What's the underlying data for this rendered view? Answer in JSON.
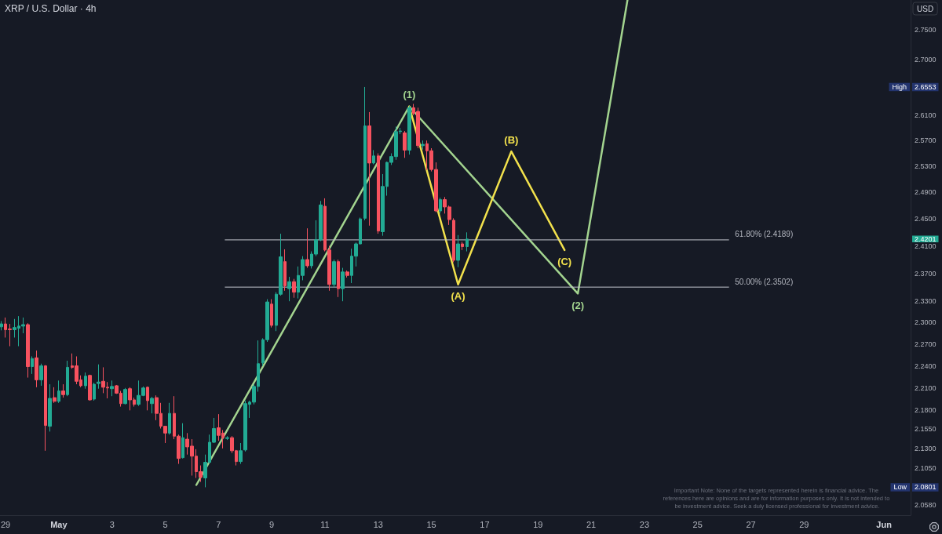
{
  "chart_data": {
    "type": "candlestick",
    "title": "XRP / U.S. Dollar · 4h",
    "ylabel": "USD",
    "log": true,
    "xlim": [
      "--04-28T19:00",
      "--06-02T00:00"
    ],
    "ylim": [
      2.045,
      2.8
    ],
    "xticks": [
      {
        "value": "--04-29",
        "label": "29"
      },
      {
        "value": "--05-01",
        "label": "May"
      },
      {
        "value": "--05-03",
        "label": "3"
      },
      {
        "value": "--05-05",
        "label": "5"
      },
      {
        "value": "--05-07",
        "label": "7"
      },
      {
        "value": "--05-09",
        "label": "9"
      },
      {
        "value": "--05-11",
        "label": "11"
      },
      {
        "value": "--05-13",
        "label": "13"
      },
      {
        "value": "--05-15",
        "label": "15"
      },
      {
        "value": "--05-17",
        "label": "17"
      },
      {
        "value": "--05-19",
        "label": "19"
      },
      {
        "value": "--05-21",
        "label": "21"
      },
      {
        "value": "--05-23",
        "label": "23"
      },
      {
        "value": "--05-25",
        "label": "25"
      },
      {
        "value": "--05-27",
        "label": "27"
      },
      {
        "value": "--05-29",
        "label": "29"
      },
      {
        "value": "--06-01",
        "label": "Jun"
      }
    ],
    "yticks": [
      {
        "value": 2.058,
        "label": "2.0580"
      },
      {
        "value": 2.0801,
        "label": "2.0801"
      },
      {
        "value": 2.105,
        "label": "2.1050"
      },
      {
        "value": 2.13,
        "label": "2.1300"
      },
      {
        "value": 2.155,
        "label": "2.1550"
      },
      {
        "value": 2.18,
        "label": "2.1800"
      },
      {
        "value": 2.21,
        "label": "2.2100"
      },
      {
        "value": 2.24,
        "label": "2.2400"
      },
      {
        "value": 2.27,
        "label": "2.2700"
      },
      {
        "value": 2.3,
        "label": "2.3000"
      },
      {
        "value": 2.33,
        "label": "2.3300"
      },
      {
        "value": 2.37,
        "label": "2.3700"
      },
      {
        "value": 2.41,
        "label": "2.4100"
      },
      {
        "value": 2.4201,
        "label": "2.4201"
      },
      {
        "value": 2.45,
        "label": "2.4500"
      },
      {
        "value": 2.49,
        "label": "2.4900"
      },
      {
        "value": 2.53,
        "label": "2.5300"
      },
      {
        "value": 2.57,
        "label": "2.5700"
      },
      {
        "value": 2.61,
        "label": "2.6100"
      },
      {
        "value": 2.6553,
        "label": "2.6553"
      },
      {
        "value": 2.7,
        "label": "2.7000"
      },
      {
        "value": 2.75,
        "label": "2.7500"
      }
    ],
    "x": [
      "--04-28T20:00",
      "--04-29T00:00",
      "--04-29T04:00",
      "--04-29T08:00",
      "--04-29T12:00",
      "--04-29T16:00",
      "--04-29T20:00",
      "--04-30T00:00",
      "--04-30T04:00",
      "--04-30T08:00",
      "--04-30T12:00",
      "--04-30T16:00",
      "--04-30T20:00",
      "--05-01T00:00",
      "--05-01T04:00",
      "--05-01T08:00",
      "--05-01T12:00",
      "--05-01T16:00",
      "--05-01T20:00",
      "--05-02T00:00",
      "--05-02T04:00",
      "--05-02T08:00",
      "--05-02T12:00",
      "--05-02T16:00",
      "--05-02T20:00",
      "--05-03T00:00",
      "--05-03T04:00",
      "--05-03T08:00",
      "--05-03T12:00",
      "--05-03T16:00",
      "--05-03T20:00",
      "--05-04T00:00",
      "--05-04T04:00",
      "--05-04T08:00",
      "--05-04T12:00",
      "--05-04T16:00",
      "--05-04T20:00",
      "--05-05T00:00",
      "--05-05T04:00",
      "--05-05T08:00",
      "--05-05T12:00",
      "--05-05T16:00",
      "--05-05T20:00",
      "--05-06T00:00",
      "--05-06T04:00",
      "--05-06T08:00",
      "--05-06T12:00",
      "--05-06T16:00",
      "--05-06T20:00",
      "--05-07T00:00",
      "--05-07T04:00",
      "--05-07T08:00",
      "--05-07T12:00",
      "--05-07T16:00",
      "--05-07T20:00",
      "--05-08T00:00",
      "--05-08T04:00",
      "--05-08T08:00",
      "--05-08T12:00",
      "--05-08T16:00",
      "--05-08T20:00",
      "--05-09T00:00",
      "--05-09T04:00",
      "--05-09T08:00",
      "--05-09T12:00",
      "--05-09T16:00",
      "--05-09T20:00",
      "--05-10T00:00",
      "--05-10T04:00",
      "--05-10T08:00",
      "--05-10T12:00",
      "--05-10T16:00",
      "--05-10T20:00",
      "--05-11T00:00",
      "--05-11T04:00",
      "--05-11T08:00",
      "--05-11T12:00",
      "--05-11T16:00",
      "--05-11T20:00",
      "--05-12T00:00",
      "--05-12T04:00",
      "--05-12T08:00",
      "--05-12T12:00",
      "--05-12T16:00",
      "--05-12T20:00",
      "--05-13T00:00",
      "--05-13T04:00",
      "--05-13T08:00",
      "--05-13T12:00",
      "--05-13T16:00",
      "--05-13T20:00",
      "--05-14T00:00",
      "--05-14T04:00",
      "--05-14T08:00",
      "--05-14T12:00",
      "--05-14T16:00",
      "--05-14T20:00",
      "--05-15T00:00",
      "--05-15T04:00",
      "--05-15T08:00",
      "--05-15T12:00",
      "--05-15T16:00",
      "--05-15T20:00",
      "--05-16T00:00",
      "--05-16T04:00",
      "--05-16T08:00"
    ],
    "ohlc": [
      [
        2.294,
        2.302,
        2.289,
        2.298
      ],
      [
        2.298,
        2.307,
        2.279,
        2.29
      ],
      [
        2.291,
        2.298,
        2.267,
        2.29
      ],
      [
        2.29,
        2.305,
        2.279,
        2.293
      ],
      [
        2.292,
        2.309,
        2.267,
        2.295
      ],
      [
        2.295,
        2.307,
        2.285,
        2.297
      ],
      [
        2.297,
        2.299,
        2.224,
        2.239
      ],
      [
        2.239,
        2.253,
        2.229,
        2.25
      ],
      [
        2.251,
        2.261,
        2.211,
        2.221
      ],
      [
        2.221,
        2.243,
        2.213,
        2.24
      ],
      [
        2.24,
        2.241,
        2.127,
        2.16
      ],
      [
        2.159,
        2.215,
        2.152,
        2.196
      ],
      [
        2.197,
        2.211,
        2.19,
        2.192
      ],
      [
        2.192,
        2.22,
        2.19,
        2.206
      ],
      [
        2.206,
        2.215,
        2.197,
        2.201
      ],
      [
        2.201,
        2.247,
        2.199,
        2.238
      ],
      [
        2.24,
        2.257,
        2.236,
        2.238
      ],
      [
        2.24,
        2.253,
        2.215,
        2.219
      ],
      [
        2.221,
        2.227,
        2.211,
        2.213
      ],
      [
        2.213,
        2.231,
        2.209,
        2.226
      ],
      [
        2.227,
        2.228,
        2.193,
        2.194
      ],
      [
        2.195,
        2.217,
        2.193,
        2.215
      ],
      [
        2.216,
        2.242,
        2.209,
        2.218
      ],
      [
        2.219,
        2.238,
        2.203,
        2.211
      ],
      [
        2.211,
        2.218,
        2.196,
        2.21
      ],
      [
        2.209,
        2.22,
        2.199,
        2.212
      ],
      [
        2.213,
        2.214,
        2.202,
        2.203
      ],
      [
        2.203,
        2.206,
        2.185,
        2.189
      ],
      [
        2.189,
        2.21,
        2.188,
        2.208
      ],
      [
        2.209,
        2.211,
        2.18,
        2.194
      ],
      [
        2.194,
        2.197,
        2.185,
        2.188
      ],
      [
        2.188,
        2.22,
        2.186,
        2.2
      ],
      [
        2.2,
        2.212,
        2.199,
        2.21
      ],
      [
        2.211,
        2.212,
        2.18,
        2.193
      ],
      [
        2.189,
        2.198,
        2.176,
        2.196
      ],
      [
        2.197,
        2.2,
        2.167,
        2.176
      ],
      [
        2.176,
        2.19,
        2.156,
        2.159
      ],
      [
        2.159,
        2.159,
        2.137,
        2.15
      ],
      [
        2.15,
        2.19,
        2.148,
        2.176
      ],
      [
        2.176,
        2.199,
        2.142,
        2.146
      ],
      [
        2.146,
        2.148,
        2.11,
        2.117
      ],
      [
        2.118,
        2.163,
        2.117,
        2.144
      ],
      [
        2.142,
        2.15,
        2.122,
        2.132
      ],
      [
        2.133,
        2.142,
        2.095,
        2.12
      ],
      [
        2.12,
        2.129,
        2.092,
        2.1
      ],
      [
        2.1,
        2.108,
        2.087,
        2.093
      ],
      [
        2.092,
        2.122,
        2.0801,
        2.112
      ],
      [
        2.112,
        2.148,
        2.111,
        2.138
      ],
      [
        2.138,
        2.17,
        2.137,
        2.156
      ],
      [
        2.157,
        2.175,
        2.14,
        2.147
      ],
      [
        2.15,
        2.154,
        2.13,
        2.144
      ],
      [
        2.143,
        2.146,
        2.141,
        2.144
      ],
      [
        2.144,
        2.146,
        2.124,
        2.127
      ],
      [
        2.127,
        2.128,
        2.108,
        2.113
      ],
      [
        2.113,
        2.137,
        2.11,
        2.127
      ],
      [
        2.128,
        2.193,
        2.126,
        2.189
      ],
      [
        2.188,
        2.193,
        2.17,
        2.191
      ],
      [
        2.191,
        2.215,
        2.188,
        2.212
      ],
      [
        2.212,
        2.275,
        2.205,
        2.243
      ],
      [
        2.244,
        2.278,
        2.24,
        2.276
      ],
      [
        2.276,
        2.333,
        2.273,
        2.329
      ],
      [
        2.326,
        2.333,
        2.293,
        2.296
      ],
      [
        2.296,
        2.343,
        2.288,
        2.34
      ],
      [
        2.34,
        2.428,
        2.338,
        2.394
      ],
      [
        2.387,
        2.405,
        2.345,
        2.352
      ],
      [
        2.348,
        2.365,
        2.33,
        2.358
      ],
      [
        2.358,
        2.362,
        2.335,
        2.343
      ],
      [
        2.343,
        2.38,
        2.334,
        2.367
      ],
      [
        2.367,
        2.395,
        2.36,
        2.39
      ],
      [
        2.39,
        2.436,
        2.378,
        2.381
      ],
      [
        2.381,
        2.402,
        2.377,
        2.398
      ],
      [
        2.398,
        2.448,
        2.395,
        2.419
      ],
      [
        2.419,
        2.477,
        2.417,
        2.471
      ],
      [
        2.469,
        2.481,
        2.402,
        2.404
      ],
      [
        2.404,
        2.41,
        2.345,
        2.354
      ],
      [
        2.354,
        2.39,
        2.35,
        2.387
      ],
      [
        2.387,
        2.39,
        2.336,
        2.348
      ],
      [
        2.348,
        2.378,
        2.33,
        2.372
      ],
      [
        2.372,
        2.374,
        2.364,
        2.367
      ],
      [
        2.367,
        2.406,
        2.356,
        2.395
      ],
      [
        2.395,
        2.415,
        2.38,
        2.413
      ],
      [
        2.413,
        2.452,
        2.412,
        2.45
      ],
      [
        2.451,
        2.6553,
        2.448,
        2.593
      ],
      [
        2.593,
        2.615,
        2.44,
        2.535
      ],
      [
        2.535,
        2.555,
        2.533,
        2.546
      ],
      [
        2.546,
        2.55,
        2.428,
        2.432
      ],
      [
        2.431,
        2.518,
        2.425,
        2.499
      ],
      [
        2.499,
        2.537,
        2.485,
        2.536
      ],
      [
        2.536,
        2.55,
        2.532,
        2.545
      ],
      [
        2.545,
        2.592,
        2.54,
        2.584
      ],
      [
        2.584,
        2.59,
        2.58,
        2.585
      ],
      [
        2.582,
        2.585,
        2.543,
        2.555
      ],
      [
        2.555,
        2.625,
        2.548,
        2.622
      ],
      [
        2.622,
        2.628,
        2.61,
        2.613
      ],
      [
        2.616,
        2.622,
        2.558,
        2.562
      ],
      [
        2.562,
        2.57,
        2.556,
        2.564
      ],
      [
        2.565,
        2.57,
        2.524,
        2.554
      ],
      [
        2.554,
        2.558,
        2.522,
        2.525
      ],
      [
        2.525,
        2.536,
        2.46,
        2.462
      ],
      [
        2.462,
        2.482,
        2.458,
        2.479
      ],
      [
        2.479,
        2.483,
        2.458,
        2.468
      ],
      [
        2.468,
        2.47,
        2.441,
        2.449
      ],
      [
        2.448,
        2.451,
        2.386,
        2.389
      ],
      [
        2.389,
        2.426,
        2.379,
        2.413
      ],
      [
        2.413,
        2.416,
        2.404,
        2.409
      ],
      [
        2.409,
        2.43,
        2.402,
        2.4201
      ]
    ],
    "colors": [
      "#22ab94",
      "#f7525f",
      "#f7525f",
      "#22ab94",
      "#22ab94",
      "#22ab94",
      "#f7525f",
      "#22ab94",
      "#f7525f",
      "#22ab94",
      "#f7525f",
      "#22ab94",
      "#f7525f",
      "#22ab94",
      "#f7525f",
      "#22ab94",
      "#f7525f",
      "#f7525f",
      "#f7525f",
      "#22ab94",
      "#f7525f",
      "#22ab94",
      "#22ab94",
      "#f7525f",
      "#f7525f",
      "#22ab94",
      "#f7525f",
      "#f7525f",
      "#22ab94",
      "#f7525f",
      "#f7525f",
      "#22ab94",
      "#22ab94",
      "#f7525f",
      "#22ab94",
      "#f7525f",
      "#f7525f",
      "#f7525f",
      "#22ab94",
      "#f7525f",
      "#f7525f",
      "#22ab94",
      "#f7525f",
      "#f7525f",
      "#f7525f",
      "#f7525f",
      "#22ab94",
      "#22ab94",
      "#22ab94",
      "#f7525f",
      "#f7525f",
      "#22ab94",
      "#f7525f",
      "#f7525f",
      "#22ab94",
      "#22ab94",
      "#22ab94",
      "#22ab94",
      "#22ab94",
      "#22ab94",
      "#22ab94",
      "#f7525f",
      "#22ab94",
      "#22ab94",
      "#f7525f",
      "#22ab94",
      "#f7525f",
      "#22ab94",
      "#22ab94",
      "#f7525f",
      "#22ab94",
      "#22ab94",
      "#22ab94",
      "#f7525f",
      "#f7525f",
      "#22ab94",
      "#f7525f",
      "#22ab94",
      "#f7525f",
      "#22ab94",
      "#22ab94",
      "#22ab94",
      "#22ab94",
      "#f7525f",
      "#22ab94",
      "#f7525f",
      "#22ab94",
      "#22ab94",
      "#22ab94",
      "#22ab94",
      "#22ab94",
      "#f7525f",
      "#22ab94",
      "#f7525f",
      "#f7525f",
      "#22ab94",
      "#f7525f",
      "#f7525f",
      "#f7525f",
      "#22ab94",
      "#f7525f",
      "#f7525f",
      "#f7525f",
      "#22ab94",
      "#f7525f",
      "#22ab94"
    ],
    "series": [
      {
        "type": "line",
        "color": "#a3d48f",
        "x": [
          "--05-06T04:00",
          "--05-14T04:00",
          "--05-20T12:00",
          "--05-22T08:45"
        ],
        "values": [
          2.083,
          2.624,
          2.341,
          2.8
        ]
      },
      {
        "type": "line",
        "color": "#f2e14c",
        "x": [
          "--05-14T04:00",
          "--05-16T00:00",
          "--05-18T00:00",
          "--05-20T00:00"
        ],
        "values": [
          2.624,
          2.354,
          2.553,
          2.404
        ]
      },
      {
        "type": "line",
        "name": "61.80% (2.4189)",
        "color": "#c3c6ce",
        "x": [
          "--05-07T06:00",
          "--05-26T04:00"
        ],
        "values": [
          2.4189,
          2.4189
        ]
      },
      {
        "type": "line",
        "name": "50.00% (2.3502)",
        "color": "#c3c6ce",
        "x": [
          "--05-07T06:00",
          "--05-26T04:00"
        ],
        "values": [
          2.3502,
          2.3502
        ]
      }
    ],
    "annotations": [
      {
        "text": "(1)",
        "x": "--05-14T04:00",
        "y": 2.624
      },
      {
        "text": "(2)",
        "x": "--05-20T12:00",
        "y": 2.341
      },
      {
        "text": "(A)",
        "x": "--05-16T00:00",
        "y": 2.354
      },
      {
        "text": "(B)",
        "x": "--05-18T00:00",
        "y": 2.553
      },
      {
        "text": "(C)",
        "x": "--05-20T00:00",
        "y": 2.404
      },
      {
        "text": "High",
        "y": 2.6553
      },
      {
        "text": "Low",
        "y": 2.0801
      },
      "Important Note: None of the targets represented herein is financial advice. The references here are opinions and are for information purposes only. It is not intended to be investment advice. Seek a duly licensed professional for investment advice."
    ]
  }
}
